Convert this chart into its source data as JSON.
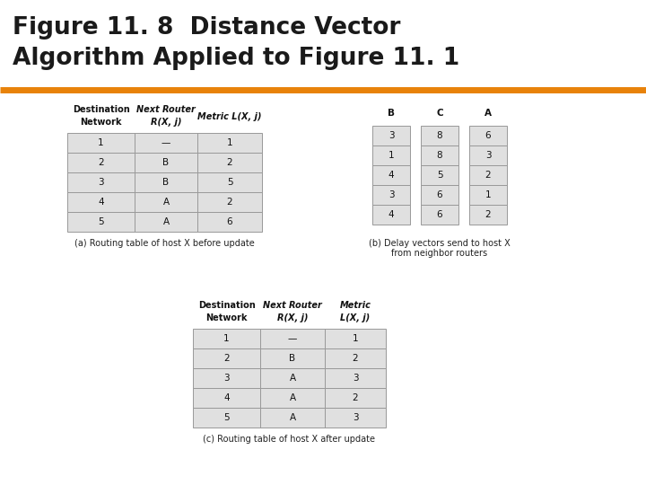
{
  "title_line1": "Figure 11. 8  Distance Vector",
  "title_line2": "Algorithm Applied to Figure 11. 1",
  "title_color": "#1a1a1a",
  "orange_line_color": "#E8820A",
  "bg_color": "#FFFFFF",
  "cell_bg": "#E0E0E0",
  "cell_border": "#999999",
  "table_a_headers_line1": [
    "Destination",
    "Next Router",
    "Metric L(X, j)"
  ],
  "table_a_headers_line2": [
    "Network",
    "R(X, j)",
    ""
  ],
  "table_a_italic": [
    false,
    true,
    true
  ],
  "table_a_rows": [
    [
      "1",
      "—",
      "1"
    ],
    [
      "2",
      "B",
      "2"
    ],
    [
      "3",
      "B",
      "5"
    ],
    [
      "4",
      "A",
      "2"
    ],
    [
      "5",
      "A",
      "6"
    ]
  ],
  "table_a_caption": "(a) Routing table of host X before update",
  "table_b_headers": [
    "B",
    "C",
    "A"
  ],
  "table_b_rows": [
    [
      "3",
      "8",
      "6"
    ],
    [
      "1",
      "8",
      "3"
    ],
    [
      "4",
      "5",
      "2"
    ],
    [
      "3",
      "6",
      "1"
    ],
    [
      "4",
      "6",
      "2"
    ]
  ],
  "table_b_caption_line1": "(b) Delay vectors send to host X",
  "table_b_caption_line2": "from neighbor routers",
  "table_c_headers_line1": [
    "Destination",
    "Next Router",
    "Metric"
  ],
  "table_c_headers_line2": [
    "Network",
    "R(X, j)",
    "L(X, j)"
  ],
  "table_c_italic": [
    false,
    true,
    true
  ],
  "table_c_rows": [
    [
      "1",
      "—",
      "1"
    ],
    [
      "2",
      "B",
      "2"
    ],
    [
      "3",
      "A",
      "3"
    ],
    [
      "4",
      "A",
      "2"
    ],
    [
      "5",
      "A",
      "3"
    ]
  ],
  "table_c_caption": "(c) Routing table of host X after update"
}
